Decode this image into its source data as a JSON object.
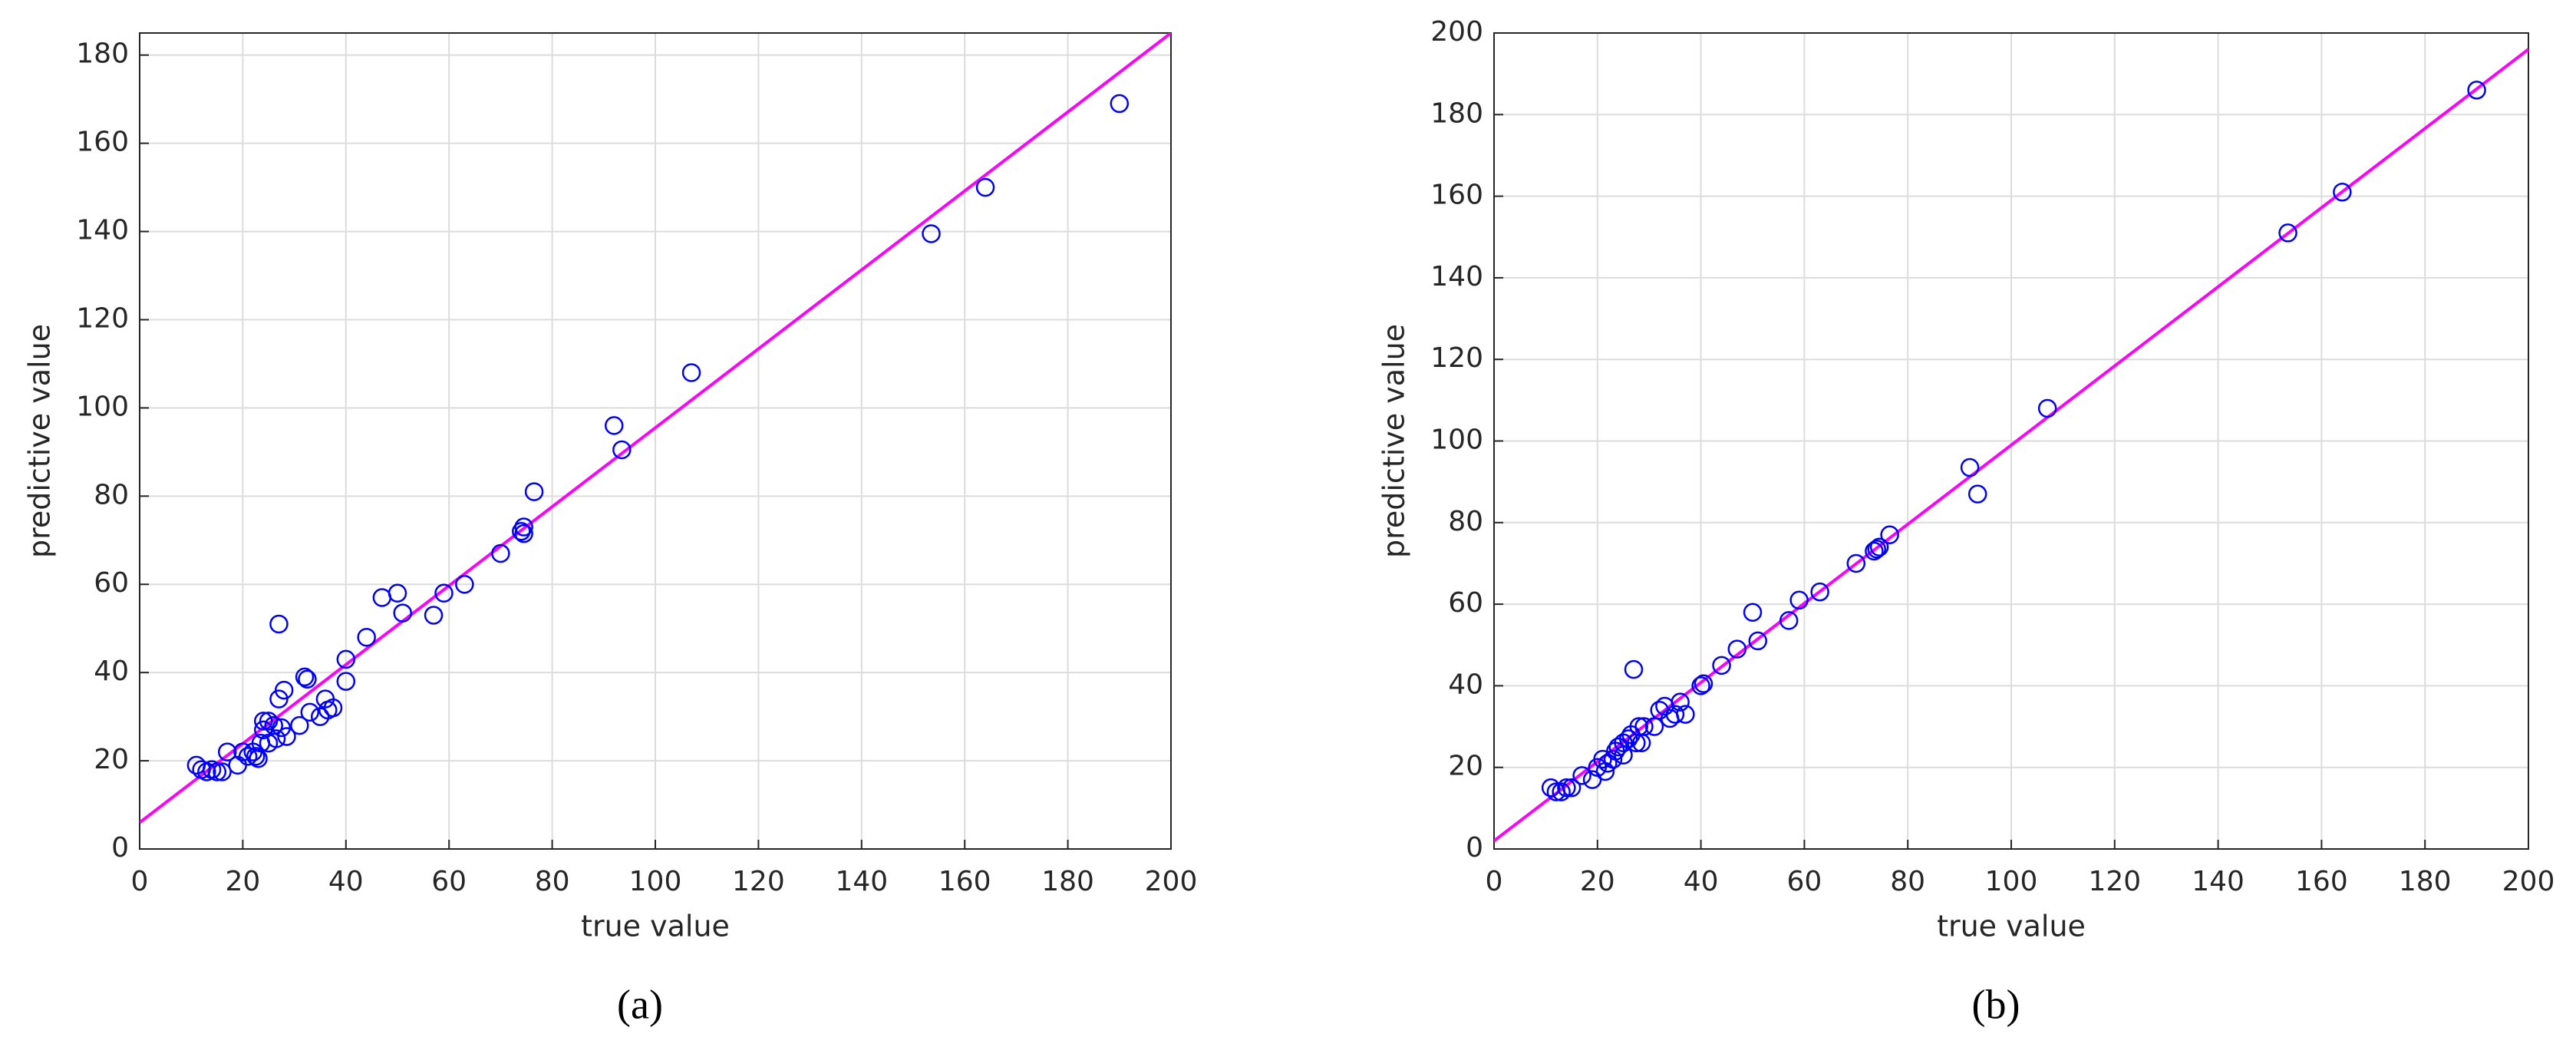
{
  "chart_data": [
    {
      "type": "scatter",
      "caption": "(a)",
      "xlabel": "true value",
      "ylabel": "predictive value",
      "x": [
        11,
        12,
        13,
        14,
        15,
        16,
        17,
        19,
        20,
        21,
        22,
        22.5,
        23,
        23.5,
        24,
        24,
        25,
        25,
        26,
        26.5,
        27,
        27,
        27.5,
        28,
        28.5,
        31,
        32,
        32.5,
        33,
        35,
        36,
        36.5,
        37.5,
        40,
        40,
        44,
        47,
        50,
        51,
        57,
        59,
        63,
        70,
        74,
        74.5,
        74.5,
        76.5,
        92,
        93.5,
        107,
        153.5,
        164,
        190
      ],
      "y": [
        19,
        18,
        17.5,
        18,
        17.5,
        17.5,
        22,
        19,
        22,
        21,
        22,
        21,
        20.5,
        24,
        27,
        29,
        29,
        24,
        28,
        25,
        34,
        51,
        27.5,
        36,
        25.5,
        28,
        39,
        38.5,
        31,
        30,
        34,
        31.5,
        32,
        38,
        43,
        48,
        57,
        58,
        53.5,
        53,
        58,
        60,
        67,
        72,
        71.5,
        73,
        81,
        96,
        90.5,
        108,
        139.5,
        150,
        169
      ],
      "color": "#0000ff",
      "fit_line": {
        "x": [
          0,
          200
        ],
        "y": [
          6,
          185
        ],
        "color": "#ff00ff"
      },
      "xlim": [
        0,
        200
      ],
      "ylim": [
        0,
        185
      ],
      "xticks": [
        0,
        20,
        40,
        60,
        80,
        100,
        120,
        140,
        160,
        180,
        200
      ],
      "yticks": [
        0,
        20,
        40,
        60,
        80,
        100,
        120,
        140,
        160,
        180
      ],
      "grid": true
    },
    {
      "type": "scatter",
      "caption": "(b)",
      "xlabel": "true value",
      "ylabel": "predictive value",
      "x": [
        11,
        12,
        13,
        14,
        15,
        17,
        19,
        20,
        21,
        21.5,
        22,
        23,
        23.5,
        24,
        25,
        25,
        26,
        26.5,
        27,
        27.5,
        28,
        28.5,
        29,
        31,
        32,
        33,
        34,
        35,
        36,
        37,
        40,
        40.5,
        44,
        47,
        50,
        51,
        57,
        59,
        63,
        70,
        73.5,
        74,
        74.5,
        76.5,
        92,
        93.5,
        107,
        153.5,
        164,
        190
      ],
      "y": [
        15,
        14,
        14,
        15,
        15,
        18,
        17,
        20,
        22,
        19,
        21,
        22,
        24,
        25,
        26,
        23,
        27,
        28,
        44,
        26,
        30,
        26,
        30,
        30,
        34,
        35,
        32,
        33,
        36,
        33,
        40,
        40.5,
        45,
        49,
        58,
        51,
        56,
        61,
        63,
        70,
        73,
        73.5,
        74,
        77,
        93.5,
        87,
        108,
        151,
        161,
        186
      ],
      "color": "#0000ff",
      "fit_line": {
        "x": [
          0,
          200
        ],
        "y": [
          2,
          196
        ],
        "color": "#ff00ff"
      },
      "xlim": [
        0,
        200
      ],
      "ylim": [
        0,
        200
      ],
      "xticks": [
        0,
        20,
        40,
        60,
        80,
        100,
        120,
        140,
        160,
        180,
        200
      ],
      "yticks": [
        0,
        20,
        40,
        60,
        80,
        100,
        120,
        140,
        160,
        180,
        200
      ],
      "grid": true
    }
  ]
}
